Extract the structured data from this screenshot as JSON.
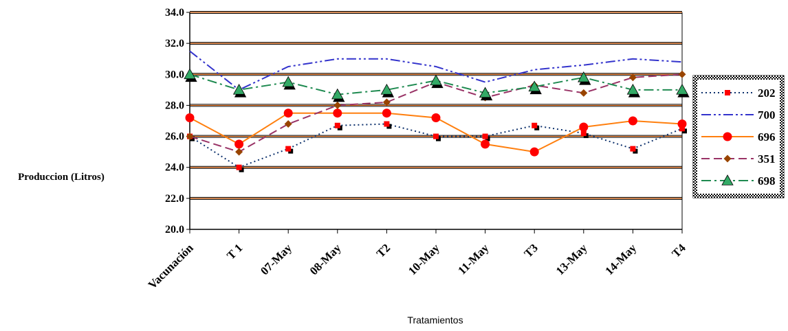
{
  "chart_data": {
    "type": "line",
    "title": "",
    "xlabel": "Tratamientos",
    "ylabel": "Produccion (Litros)",
    "ylim": [
      20,
      34
    ],
    "yticks": [
      "20.0",
      "22.0",
      "24.0",
      "26.0",
      "28.0",
      "30.0",
      "32.0",
      "34.0"
    ],
    "grid": "horizontal",
    "legend_position": "right",
    "categories": [
      "Vacunación",
      "T 1",
      "07-May",
      "08-May",
      "T2",
      "10-May",
      "11-May",
      "T3",
      "13-May",
      "14-May",
      "T4"
    ],
    "series": [
      {
        "name": "202",
        "color": "#0b2f6b",
        "marker": "square",
        "marker_color": "#ff0000",
        "dash": "dot",
        "values": [
          26.0,
          24.0,
          25.2,
          26.7,
          26.8,
          26.0,
          26.0,
          26.7,
          26.2,
          25.2,
          26.5
        ]
      },
      {
        "name": "700",
        "color": "#3333cc",
        "marker": "none",
        "dash": "dashdotdot",
        "values": [
          31.5,
          29.0,
          30.5,
          31.0,
          31.0,
          30.5,
          29.5,
          30.3,
          30.6,
          31.0,
          30.8
        ]
      },
      {
        "name": "696",
        "color": "#ff7f0e",
        "marker": "circle",
        "marker_color": "#ff0000",
        "dash": "solid",
        "values": [
          27.2,
          25.5,
          27.5,
          27.5,
          27.5,
          27.2,
          25.5,
          25.0,
          26.6,
          27.0,
          26.8
        ]
      },
      {
        "name": "351",
        "color": "#993366",
        "marker": "diamond",
        "marker_color": "#994400",
        "dash": "dash",
        "values": [
          26.0,
          25.0,
          26.8,
          28.0,
          28.2,
          29.5,
          28.5,
          29.3,
          28.8,
          29.8,
          30.0
        ]
      },
      {
        "name": "698",
        "color": "#1e8a50",
        "marker": "triangle",
        "marker_color": "#33aa66",
        "dash": "dashdot",
        "values": [
          30.0,
          29.0,
          29.5,
          28.7,
          29.0,
          29.6,
          28.8,
          29.2,
          29.8,
          29.0,
          29.0
        ]
      }
    ]
  }
}
